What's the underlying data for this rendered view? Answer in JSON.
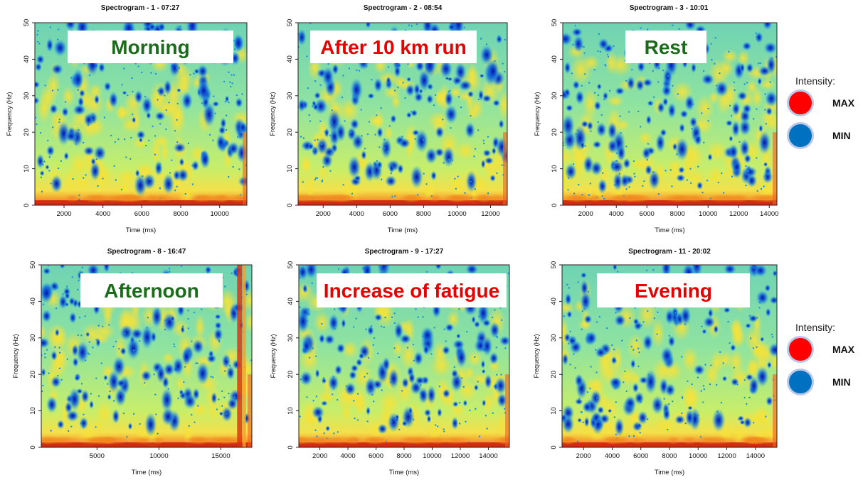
{
  "legend": {
    "title": "Intensity:",
    "max_label": "MAX",
    "min_label": "MIN",
    "max_color": "#ff0000",
    "min_color": "#0070c0"
  },
  "colors": {
    "label_green": "#1a6b1a",
    "label_red": "#e60000",
    "heat_low": "#0000b4",
    "heat_mid": "#7fe0a0",
    "heat_high": "#d00000"
  },
  "chart_data": [
    {
      "type": "heatmap",
      "title": "Spectrogram - 1 - 07:27",
      "xlabel": "Time (ms)",
      "ylabel": "Frequency (Hz)",
      "xlim": [
        500,
        11400
      ],
      "ylim": [
        0,
        50
      ],
      "xticks": [
        2000,
        4000,
        6000,
        8000,
        10000
      ],
      "yticks": [
        0,
        10,
        20,
        30,
        40,
        50
      ],
      "annotation": "Morning",
      "annotation_color": "green"
    },
    {
      "type": "heatmap",
      "title": "Spectrogram - 2 - 08:54",
      "xlabel": "Time (ms)",
      "ylabel": "Frequency (Hz)",
      "xlim": [
        500,
        13000
      ],
      "ylim": [
        0,
        50
      ],
      "xticks": [
        2000,
        4000,
        6000,
        8000,
        10000,
        12000
      ],
      "yticks": [
        0,
        10,
        20,
        30,
        40,
        50
      ],
      "annotation": "After 10 km run",
      "annotation_color": "red"
    },
    {
      "type": "heatmap",
      "title": "Spectrogram - 3 - 10:01",
      "xlabel": "Time (ms)",
      "ylabel": "Frequency (Hz)",
      "xlim": [
        500,
        14500
      ],
      "ylim": [
        0,
        50
      ],
      "xticks": [
        2000,
        4000,
        6000,
        8000,
        10000,
        12000,
        14000
      ],
      "yticks": [
        0,
        10,
        20,
        30,
        40,
        50
      ],
      "annotation": "Rest",
      "annotation_color": "green"
    },
    {
      "type": "heatmap",
      "title": "Spectrogram - 8 - 16:47",
      "xlabel": "Time (ms)",
      "ylabel": "Frequency (Hz)",
      "xlim": [
        500,
        17500
      ],
      "ylim": [
        0,
        50
      ],
      "xticks": [
        5000,
        10000,
        15000
      ],
      "yticks": [
        0,
        10,
        20,
        30,
        40,
        50
      ],
      "annotation": "Afternoon",
      "annotation_color": "green"
    },
    {
      "type": "heatmap",
      "title": "Spectrogram - 9 - 17:27",
      "xlabel": "Time (ms)",
      "ylabel": "Frequency (Hz)",
      "xlim": [
        500,
        15500
      ],
      "ylim": [
        0,
        50
      ],
      "xticks": [
        2000,
        4000,
        6000,
        8000,
        10000,
        12000,
        14000
      ],
      "yticks": [
        0,
        10,
        20,
        30,
        40,
        50
      ],
      "annotation": "Increase of fatigue",
      "annotation_color": "red"
    },
    {
      "type": "heatmap",
      "title": "Spectrogram - 11 - 20:02",
      "xlabel": "Time (ms)",
      "ylabel": "Frequency (Hz)",
      "xlim": [
        500,
        15500
      ],
      "ylim": [
        0,
        50
      ],
      "xticks": [
        2000,
        4000,
        6000,
        8000,
        10000,
        12000,
        14000
      ],
      "yticks": [
        0,
        10,
        20,
        30,
        40,
        50
      ],
      "annotation": "Evening",
      "annotation_color": "red"
    }
  ]
}
